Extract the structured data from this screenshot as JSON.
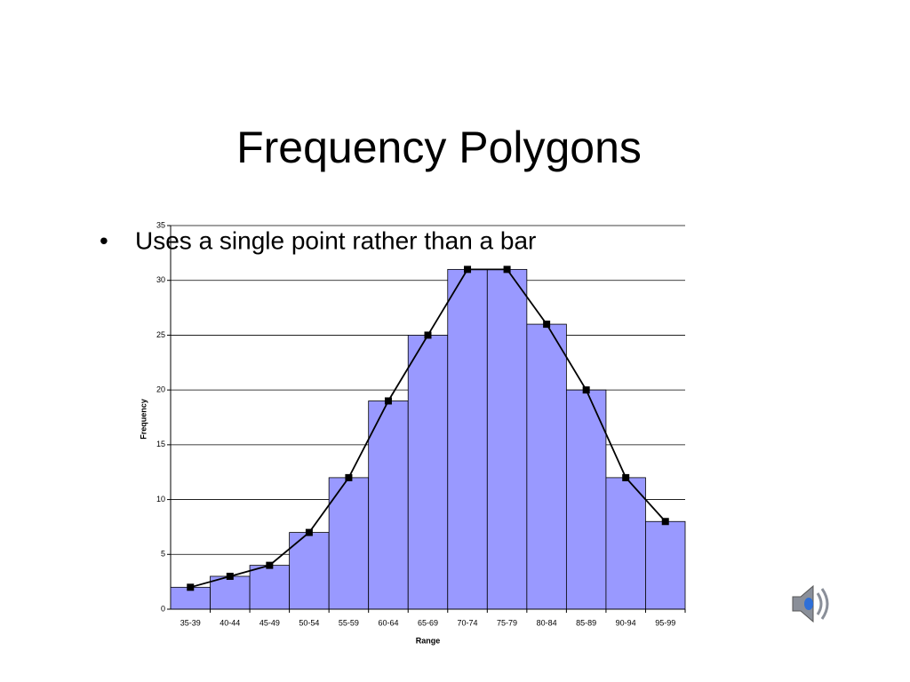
{
  "slide": {
    "title": "Frequency Polygons",
    "bullets": [
      "Uses a single point rather than a bar"
    ]
  },
  "chart_data": {
    "type": "bar",
    "xlabel": "Range",
    "ylabel": "Frequency",
    "categories": [
      "35-39",
      "40-44",
      "45-49",
      "50-54",
      "55-59",
      "60-64",
      "65-69",
      "70-74",
      "75-79",
      "80-84",
      "85-89",
      "90-94",
      "95-99"
    ],
    "values": [
      2,
      3,
      4,
      7,
      12,
      19,
      25,
      31,
      31,
      26,
      20,
      12,
      8
    ],
    "color": "#9999ff",
    "line": true,
    "line_color": "#000000",
    "ylim": [
      0,
      35
    ],
    "yticks": [
      0,
      5,
      10,
      15,
      20,
      25,
      30,
      35
    ],
    "grid": true
  }
}
